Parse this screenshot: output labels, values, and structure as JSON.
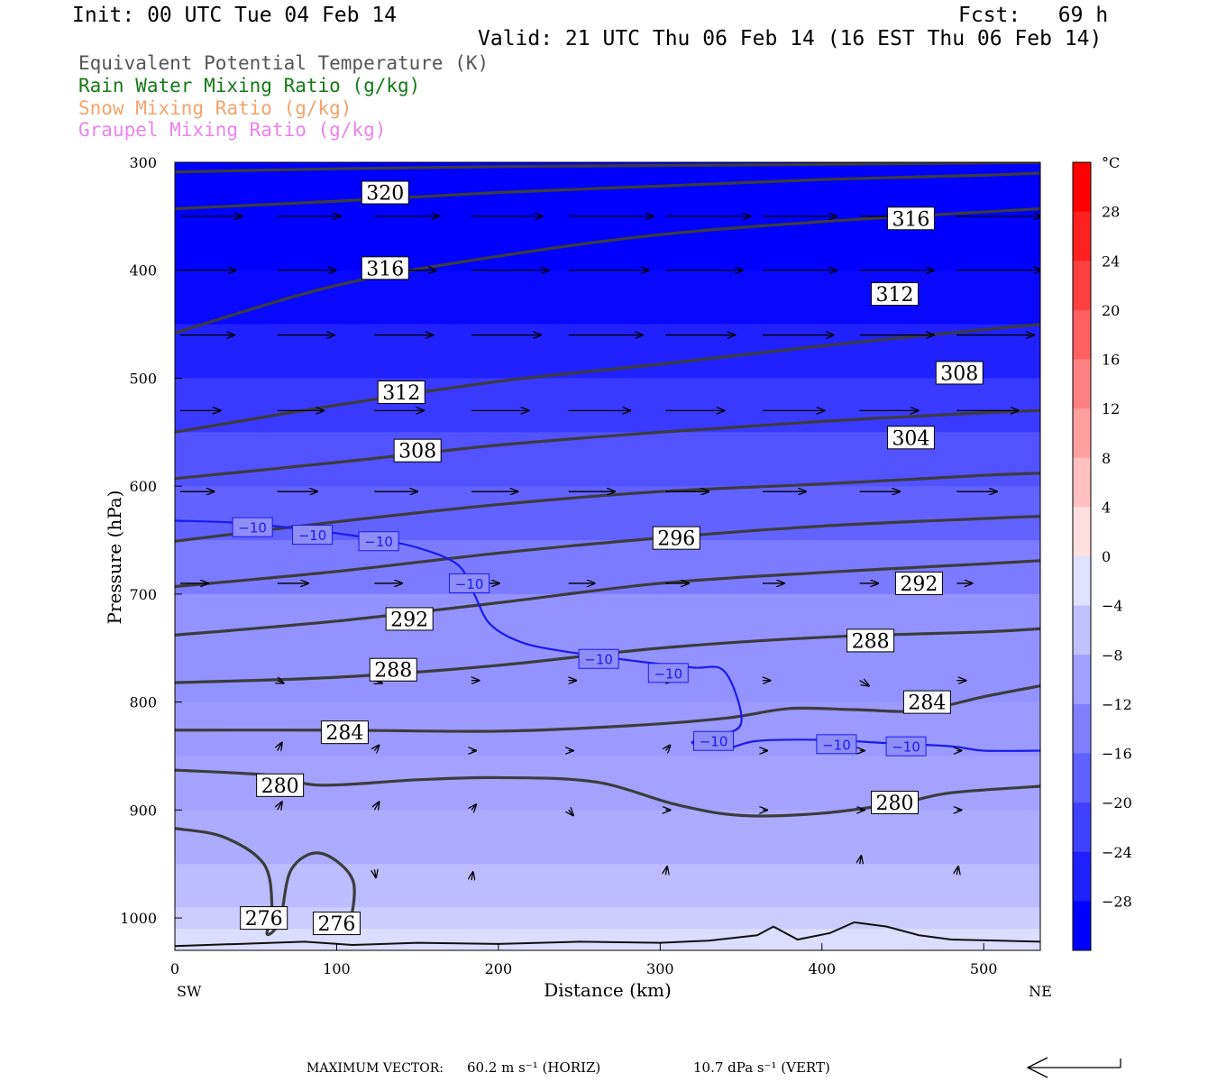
{
  "header": {
    "init": "Init: 00 UTC Tue 04 Feb 14",
    "fcst": "Fcst:   69 h",
    "valid": "Valid: 21 UTC Thu 06 Feb 14 (16 EST Thu 06 Feb 14)"
  },
  "fields": [
    {
      "label": "Equivalent Potential Temperature (K)",
      "color": "#555555"
    },
    {
      "label": "Rain Water Mixing Ratio (g/kg)",
      "color": "#157a15"
    },
    {
      "label": "Snow Mixing Ratio (g/kg)",
      "color": "#f4a36b"
    },
    {
      "label": "Graupel Mixing Ratio (g/kg)",
      "color": "#ee82ee"
    }
  ],
  "footer": {
    "max_vector_label": "MAXIMUM VECTOR:",
    "horiz_value": "60.2 m s⁻¹ (HORIZ)",
    "vert_value": "10.7 dPa s⁻¹ (VERT)"
  },
  "colorbar": {
    "unit": "°C",
    "ticks": [
      "28",
      "24",
      "20",
      "16",
      "12",
      "8",
      "4",
      "0",
      "−4",
      "−8",
      "−12",
      "−16",
      "−20",
      "−24",
      "−28"
    ],
    "tick_values": [
      28,
      24,
      20,
      16,
      12,
      8,
      4,
      0,
      -4,
      -8,
      -12,
      -16,
      -20,
      -24,
      -28
    ],
    "min": -32,
    "max": 32
  },
  "chart_data": {
    "type": "heatmap",
    "description_fields": [
      "temperature (shaded, °C)",
      "theta-e contours (K)",
      "-10 °C isotherm",
      "wind vectors"
    ],
    "xlabel": "Distance (km)",
    "ylabel": "Pressure (hPa)",
    "xlim": [
      0,
      535
    ],
    "ylim": [
      1030,
      300
    ],
    "x_ticks": [
      0,
      100,
      200,
      300,
      400,
      500
    ],
    "y_ticks": [
      300,
      400,
      500,
      600,
      700,
      800,
      900,
      1000
    ],
    "x_left_label": "SW",
    "x_right_label": "NE",
    "temperature_shading": [
      {
        "p": 300,
        "t": -30
      },
      {
        "p": 400,
        "t": -29
      },
      {
        "p": 450,
        "t": -26
      },
      {
        "p": 500,
        "t": -23
      },
      {
        "p": 550,
        "t": -20
      },
      {
        "p": 600,
        "t": -18
      },
      {
        "p": 650,
        "t": -15
      },
      {
        "p": 700,
        "t": -12
      },
      {
        "p": 750,
        "t": -12
      },
      {
        "p": 800,
        "t": -11
      },
      {
        "p": 850,
        "t": -10
      },
      {
        "p": 900,
        "t": -9
      },
      {
        "p": 950,
        "t": -7
      },
      {
        "p": 990,
        "t": -5
      },
      {
        "p": 1010,
        "t": -3
      },
      {
        "p": 1030,
        "t": -1
      }
    ],
    "theta_e_contours": [
      {
        "level": 276,
        "points": [
          [
            0,
            917
          ],
          [
            30,
            925
          ],
          [
            55,
            950
          ],
          [
            60,
            990
          ],
          [
            57,
            1015
          ],
          [
            65,
            1002
          ],
          [
            72,
            955
          ],
          [
            90,
            940
          ],
          [
            110,
            965
          ],
          [
            108,
            1010
          ]
        ],
        "labels": [
          [
            55,
            1000
          ],
          [
            100,
            1005
          ]
        ]
      },
      {
        "level": 280,
        "points": [
          [
            0,
            863
          ],
          [
            60,
            868
          ],
          [
            90,
            877
          ],
          [
            150,
            872
          ],
          [
            200,
            870
          ],
          [
            260,
            874
          ],
          [
            310,
            895
          ],
          [
            350,
            905
          ],
          [
            400,
            903
          ],
          [
            450,
            893
          ],
          [
            480,
            884
          ],
          [
            535,
            878
          ]
        ],
        "labels": [
          [
            65,
            877
          ],
          [
            445,
            893
          ]
        ]
      },
      {
        "level": 284,
        "points": [
          [
            0,
            826
          ],
          [
            100,
            826
          ],
          [
            200,
            827
          ],
          [
            280,
            822
          ],
          [
            340,
            815
          ],
          [
            380,
            806
          ],
          [
            420,
            807
          ],
          [
            460,
            808
          ],
          [
            500,
            795
          ],
          [
            535,
            785
          ]
        ],
        "labels": [
          [
            105,
            828
          ],
          [
            465,
            800
          ]
        ]
      },
      {
        "level": 288,
        "points": [
          [
            0,
            782
          ],
          [
            100,
            777
          ],
          [
            200,
            766
          ],
          [
            300,
            750
          ],
          [
            400,
            740
          ],
          [
            500,
            735
          ],
          [
            535,
            732
          ]
        ],
        "labels": [
          [
            135,
            770
          ],
          [
            430,
            743
          ]
        ]
      },
      {
        "level": 292,
        "points": [
          [
            0,
            738
          ],
          [
            100,
            725
          ],
          [
            200,
            708
          ],
          [
            300,
            690
          ],
          [
            400,
            680
          ],
          [
            500,
            672
          ],
          [
            535,
            669
          ]
        ],
        "labels": [
          [
            145,
            723
          ],
          [
            460,
            690
          ]
        ]
      },
      {
        "level": 296,
        "points": [
          [
            0,
            693
          ],
          [
            100,
            679
          ],
          [
            200,
            662
          ],
          [
            300,
            648
          ],
          [
            400,
            637
          ],
          [
            500,
            630
          ],
          [
            535,
            628
          ]
        ],
        "labels": [
          [
            310,
            648
          ]
        ]
      },
      {
        "level": 300,
        "points": [
          [
            0,
            651
          ],
          [
            100,
            633
          ],
          [
            200,
            617
          ],
          [
            300,
            605
          ],
          [
            400,
            598
          ],
          [
            500,
            590
          ],
          [
            535,
            588
          ]
        ],
        "labels": []
      },
      {
        "level": 304,
        "points": [
          [
            0,
            593
          ],
          [
            100,
            578
          ],
          [
            200,
            562
          ],
          [
            300,
            550
          ],
          [
            400,
            540
          ],
          [
            500,
            532
          ],
          [
            535,
            530
          ]
        ],
        "labels": [
          [
            455,
            555
          ]
        ]
      },
      {
        "level": 308,
        "points": [
          [
            0,
            550
          ],
          [
            100,
            525
          ],
          [
            200,
            503
          ],
          [
            300,
            487
          ],
          [
            400,
            470
          ],
          [
            500,
            455
          ],
          [
            535,
            450
          ]
        ],
        "labels": [
          [
            150,
            567
          ],
          [
            485,
            495
          ]
        ]
      },
      {
        "level": 312,
        "points": [
          [
            0,
            458
          ],
          [
            100,
            414
          ],
          [
            200,
            387
          ],
          [
            300,
            367
          ],
          [
            400,
            355
          ],
          [
            500,
            346
          ],
          [
            535,
            343
          ]
        ],
        "labels": [
          [
            140,
            513
          ],
          [
            445,
            422
          ]
        ]
      },
      {
        "level": 316,
        "points": [
          [
            0,
            343
          ],
          [
            100,
            336
          ],
          [
            200,
            328
          ],
          [
            300,
            322
          ],
          [
            400,
            316
          ],
          [
            500,
            312
          ],
          [
            535,
            310
          ]
        ],
        "labels": [
          [
            130,
            398
          ],
          [
            455,
            352
          ]
        ]
      },
      {
        "level": 320,
        "points": [
          [
            0,
            309
          ],
          [
            100,
            306
          ],
          [
            200,
            304
          ],
          [
            300,
            303
          ],
          [
            400,
            302
          ],
          [
            535,
            300
          ]
        ],
        "labels": [
          [
            130,
            328
          ]
        ]
      }
    ],
    "isotherm_minus10": {
      "label": "−10",
      "points": [
        [
          0,
          632
        ],
        [
          40,
          634
        ],
        [
          80,
          640
        ],
        [
          120,
          648
        ],
        [
          150,
          657
        ],
        [
          175,
          673
        ],
        [
          185,
          700
        ],
        [
          195,
          728
        ],
        [
          215,
          745
        ],
        [
          245,
          754
        ],
        [
          290,
          763
        ],
        [
          320,
          768
        ],
        [
          340,
          772
        ],
        [
          350,
          820
        ],
        [
          330,
          832
        ],
        [
          320,
          838
        ],
        [
          340,
          843
        ],
        [
          360,
          836
        ],
        [
          400,
          835
        ],
        [
          440,
          838
        ],
        [
          480,
          841
        ],
        [
          500,
          845
        ],
        [
          535,
          845
        ]
      ],
      "labels": [
        [
          48,
          638
        ],
        [
          85,
          645
        ],
        [
          126,
          651
        ],
        [
          182,
          690
        ],
        [
          262,
          760
        ],
        [
          305,
          773
        ],
        [
          333,
          836
        ],
        [
          409,
          839
        ],
        [
          452,
          841
        ]
      ]
    },
    "wind_vectors": [
      {
        "x": 0,
        "p": 350,
        "u": 40,
        "w": 0
      },
      {
        "x": 60,
        "p": 350,
        "u": 41,
        "w": 0
      },
      {
        "x": 120,
        "p": 350,
        "u": 42,
        "w": 0
      },
      {
        "x": 180,
        "p": 350,
        "u": 46,
        "w": 0
      },
      {
        "x": 240,
        "p": 350,
        "u": 55,
        "w": 0
      },
      {
        "x": 300,
        "p": 350,
        "u": 55,
        "w": 0
      },
      {
        "x": 360,
        "p": 350,
        "u": 48,
        "w": 0
      },
      {
        "x": 420,
        "p": 350,
        "u": 45,
        "w": 0
      },
      {
        "x": 480,
        "p": 350,
        "u": 55,
        "w": 0
      },
      {
        "x": 0,
        "p": 400,
        "u": 36,
        "w": 0
      },
      {
        "x": 60,
        "p": 400,
        "u": 38,
        "w": 0
      },
      {
        "x": 120,
        "p": 400,
        "u": 40,
        "w": 0
      },
      {
        "x": 180,
        "p": 400,
        "u": 50,
        "w": 0
      },
      {
        "x": 240,
        "p": 400,
        "u": 52,
        "w": 0
      },
      {
        "x": 300,
        "p": 400,
        "u": 50,
        "w": 0
      },
      {
        "x": 360,
        "p": 400,
        "u": 48,
        "w": 0
      },
      {
        "x": 420,
        "p": 400,
        "u": 48,
        "w": 0
      },
      {
        "x": 480,
        "p": 400,
        "u": 55,
        "w": 0
      },
      {
        "x": 0,
        "p": 460,
        "u": 35,
        "w": 0
      },
      {
        "x": 60,
        "p": 460,
        "u": 37,
        "w": 0
      },
      {
        "x": 120,
        "p": 460,
        "u": 38,
        "w": 0
      },
      {
        "x": 180,
        "p": 460,
        "u": 45,
        "w": 0
      },
      {
        "x": 240,
        "p": 460,
        "u": 48,
        "w": 0
      },
      {
        "x": 300,
        "p": 460,
        "u": 45,
        "w": 0
      },
      {
        "x": 360,
        "p": 460,
        "u": 46,
        "w": 0
      },
      {
        "x": 420,
        "p": 460,
        "u": 48,
        "w": 0
      },
      {
        "x": 480,
        "p": 460,
        "u": 50,
        "w": 0
      },
      {
        "x": 0,
        "p": 530,
        "u": 26,
        "w": 0
      },
      {
        "x": 60,
        "p": 530,
        "u": 30,
        "w": 0
      },
      {
        "x": 120,
        "p": 530,
        "u": 32,
        "w": 0
      },
      {
        "x": 180,
        "p": 530,
        "u": 37,
        "w": 0
      },
      {
        "x": 240,
        "p": 530,
        "u": 40,
        "w": 0
      },
      {
        "x": 300,
        "p": 530,
        "u": 38,
        "w": 0
      },
      {
        "x": 360,
        "p": 530,
        "u": 40,
        "w": 0
      },
      {
        "x": 420,
        "p": 530,
        "u": 38,
        "w": 0
      },
      {
        "x": 480,
        "p": 530,
        "u": 40,
        "w": 0
      },
      {
        "x": 0,
        "p": 605,
        "u": 22,
        "w": 0
      },
      {
        "x": 60,
        "p": 605,
        "u": 26,
        "w": 0
      },
      {
        "x": 120,
        "p": 605,
        "u": 28,
        "w": 0
      },
      {
        "x": 180,
        "p": 605,
        "u": 30,
        "w": 0
      },
      {
        "x": 240,
        "p": 605,
        "u": 30,
        "w": 0
      },
      {
        "x": 300,
        "p": 605,
        "u": 28,
        "w": 0
      },
      {
        "x": 360,
        "p": 605,
        "u": 28,
        "w": 0
      },
      {
        "x": 420,
        "p": 605,
        "u": 26,
        "w": 0
      },
      {
        "x": 480,
        "p": 605,
        "u": 26,
        "w": 0
      },
      {
        "x": 0,
        "p": 690,
        "u": 18,
        "w": 0
      },
      {
        "x": 60,
        "p": 690,
        "u": 20,
        "w": 0
      },
      {
        "x": 120,
        "p": 690,
        "u": 18,
        "w": 0
      },
      {
        "x": 180,
        "p": 690,
        "u": 18,
        "w": 0
      },
      {
        "x": 240,
        "p": 690,
        "u": 17,
        "w": 0
      },
      {
        "x": 300,
        "p": 690,
        "u": 15,
        "w": 0
      },
      {
        "x": 360,
        "p": 690,
        "u": 14,
        "w": 0
      },
      {
        "x": 420,
        "p": 690,
        "u": 12,
        "w": 0
      },
      {
        "x": 480,
        "p": 690,
        "u": 10,
        "w": 0
      },
      {
        "x": 60,
        "p": 780,
        "u": 4,
        "w": -1
      },
      {
        "x": 120,
        "p": 780,
        "u": 5,
        "w": -1
      },
      {
        "x": 180,
        "p": 780,
        "u": 5,
        "w": 0
      },
      {
        "x": 240,
        "p": 780,
        "u": 5,
        "w": 0
      },
      {
        "x": 300,
        "p": 780,
        "u": 5,
        "w": 0
      },
      {
        "x": 360,
        "p": 780,
        "u": 5,
        "w": 0
      },
      {
        "x": 420,
        "p": 780,
        "u": 6,
        "w": -2
      },
      {
        "x": 480,
        "p": 780,
        "u": 6,
        "w": 0
      },
      {
        "x": 60,
        "p": 845,
        "u": 3,
        "w": 3
      },
      {
        "x": 120,
        "p": 845,
        "u": 3,
        "w": 2
      },
      {
        "x": 180,
        "p": 845,
        "u": 3,
        "w": 0
      },
      {
        "x": 240,
        "p": 845,
        "u": 3,
        "w": 0
      },
      {
        "x": 300,
        "p": 845,
        "u": 3,
        "w": 2
      },
      {
        "x": 360,
        "p": 845,
        "u": 3,
        "w": 0
      },
      {
        "x": 420,
        "p": 845,
        "u": 3,
        "w": 0
      },
      {
        "x": 480,
        "p": 845,
        "u": 3,
        "w": 0
      },
      {
        "x": 60,
        "p": 900,
        "u": 3,
        "w": 3
      },
      {
        "x": 120,
        "p": 900,
        "u": 3,
        "w": 3
      },
      {
        "x": 180,
        "p": 900,
        "u": 3,
        "w": 2
      },
      {
        "x": 240,
        "p": 900,
        "u": 3,
        "w": -2
      },
      {
        "x": 300,
        "p": 900,
        "u": 3,
        "w": 0
      },
      {
        "x": 360,
        "p": 900,
        "u": 3,
        "w": 0
      },
      {
        "x": 420,
        "p": 900,
        "u": 3,
        "w": 0
      },
      {
        "x": 480,
        "p": 900,
        "u": 3,
        "w": 0
      },
      {
        "x": 120,
        "p": 955,
        "u": 1,
        "w": -3
      },
      {
        "x": 180,
        "p": 965,
        "u": 1,
        "w": 3
      },
      {
        "x": 300,
        "p": 960,
        "u": 1,
        "w": 3
      },
      {
        "x": 420,
        "p": 950,
        "u": 1,
        "w": 3
      },
      {
        "x": 480,
        "p": 960,
        "u": 1,
        "w": 3
      }
    ],
    "terrain": [
      [
        0,
        1026
      ],
      [
        40,
        1024
      ],
      [
        80,
        1022
      ],
      [
        110,
        1025
      ],
      [
        150,
        1023
      ],
      [
        200,
        1024
      ],
      [
        250,
        1022
      ],
      [
        300,
        1023
      ],
      [
        330,
        1021
      ],
      [
        360,
        1016
      ],
      [
        370,
        1008
      ],
      [
        385,
        1020
      ],
      [
        405,
        1014
      ],
      [
        420,
        1004
      ],
      [
        440,
        1008
      ],
      [
        460,
        1016
      ],
      [
        480,
        1020
      ],
      [
        510,
        1021
      ],
      [
        535,
        1022
      ]
    ],
    "reference_vector_u": 60.2
  }
}
